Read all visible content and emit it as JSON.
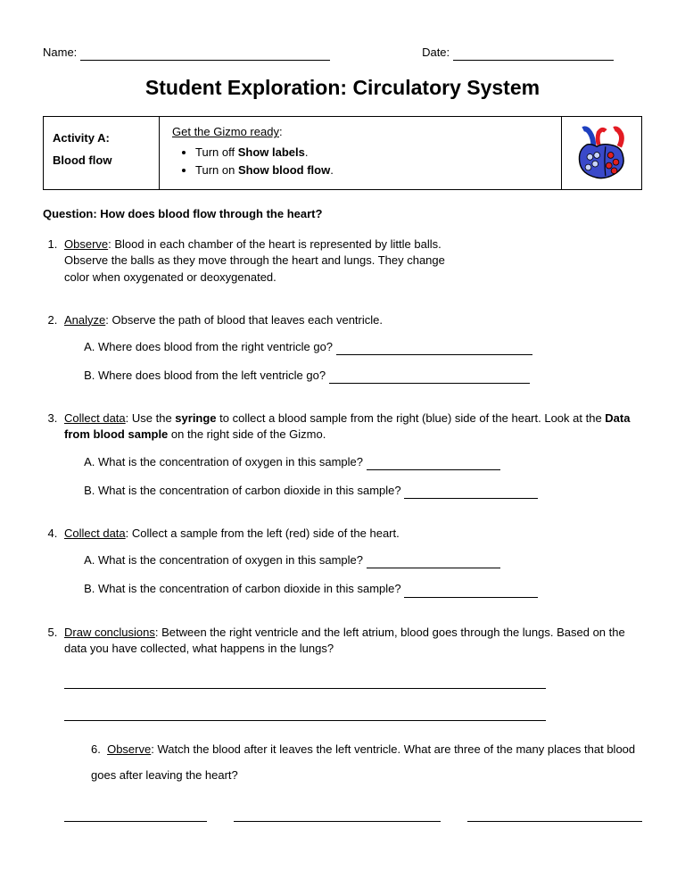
{
  "header": {
    "name_label": "Name:",
    "date_label": "Date:"
  },
  "title": "Student Exploration: Circulatory System",
  "activity_box": {
    "left_line1": "Activity A:",
    "left_line2": "Blood flow",
    "ready_label": "Get the Gizmo ready",
    "ready_colon": ":",
    "bullets": [
      {
        "pre": "Turn off ",
        "bold": "Show labels",
        "post": "."
      },
      {
        "pre": "Turn on ",
        "bold": "Show blood flow",
        "post": "."
      }
    ],
    "icon_colors": {
      "artery_red": "#e31b23",
      "vein_blue": "#1e3fbf",
      "heart_fill": "#3a49c9",
      "ball_red": "#e02020",
      "ball_blue": "#c8d4ff",
      "outline": "#000000"
    }
  },
  "question_line": "Question: How does blood flow through the heart?",
  "items": {
    "1": {
      "lead": "Observe",
      "text": ": Blood in each chamber of the heart is represented by little balls. Observe the balls as they move through the heart and lungs. They change color when oxygenated or deoxygenated."
    },
    "2": {
      "lead": "Analyze",
      "text": ": Observe the path of blood that leaves each ventricle.",
      "sub": {
        "A": "Where does blood from the right ventricle go? ",
        "B": "Where does blood from the left ventricle go? "
      }
    },
    "3": {
      "lead": "Collect data",
      "pre": ": Use the ",
      "bold1": "syringe",
      "mid": " to collect a blood sample from the right (blue) side of the heart. Look at the ",
      "bold2": "Data from blood sample",
      "post": " on the right side of the Gizmo.",
      "sub": {
        "A": "What is the concentration of oxygen in this sample? ",
        "B": "What is the concentration of carbon dioxide in this sample? "
      }
    },
    "4": {
      "lead": "Collect data",
      "text": ": Collect a sample from the left (red) side of the heart.",
      "sub": {
        "A": "What is the concentration of oxygen in this sample? ",
        "B": "What is the concentration of carbon dioxide in this sample? "
      }
    },
    "5": {
      "lead": "Draw conclusions",
      "text": ": Between the right ventricle and the left atrium, blood goes through the lungs. Based on the data you have collected, what happens in the lungs?"
    },
    "6": {
      "lead": "Observe",
      "text": ": Watch the blood after it leaves the left ventricle. What are three of the many places that blood goes after leaving the heart?"
    }
  },
  "blank_widths": {
    "name": "280px",
    "date": "180px",
    "q2": "220px",
    "q3a": "150px",
    "q3b": "150px"
  }
}
